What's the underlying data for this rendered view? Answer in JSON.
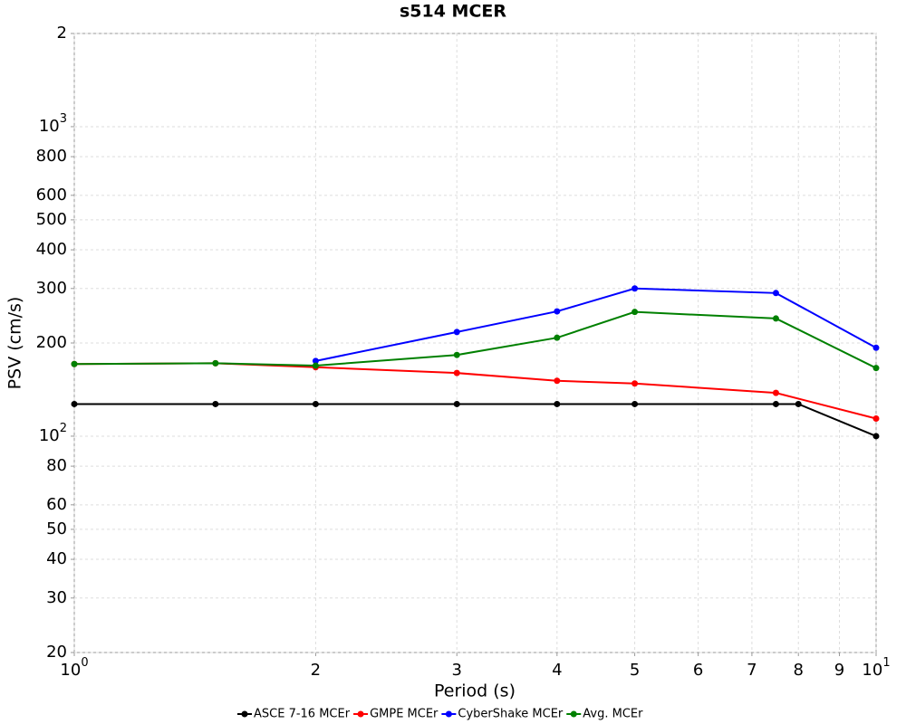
{
  "chart_data": {
    "type": "line",
    "title": "s514 MCER",
    "x_label": "Period (s)",
    "y_label": "PSV (cm/s)",
    "x_scale": "log",
    "y_scale": "log",
    "grid": true,
    "xlim": [
      1,
      10
    ],
    "ylim": [
      20,
      2000
    ],
    "xticks": [
      {
        "value": 1,
        "label": "10",
        "superscript": "0"
      },
      2,
      3,
      4,
      5,
      6,
      7,
      8,
      9,
      {
        "value": 10,
        "label": "10",
        "superscript": "1"
      }
    ],
    "yticks": [
      20,
      30,
      40,
      50,
      60,
      80,
      {
        "value": 100,
        "label": "10",
        "superscript": "2"
      },
      200,
      300,
      400,
      500,
      600,
      800,
      {
        "value": 1000,
        "label": "10",
        "superscript": "3"
      },
      {
        "value": 2000,
        "label": "2"
      }
    ],
    "legend_position": "bottom",
    "series": [
      {
        "name": "ASCE 7-16 MCEr",
        "color": "#000000",
        "x": [
          1,
          1.5,
          2,
          3,
          4,
          5,
          7.5,
          8,
          10
        ],
        "values": [
          127,
          127,
          127,
          127,
          127,
          127,
          127,
          127,
          100
        ]
      },
      {
        "name": "GMPE MCEr",
        "color": "#ff0000",
        "x": [
          1,
          1.5,
          2,
          3,
          4,
          5,
          7.5,
          10
        ],
        "values": [
          171,
          172,
          167,
          160,
          151,
          148,
          138,
          114
        ]
      },
      {
        "name": "CyberShake MCEr",
        "color": "#0000ff",
        "x": [
          2,
          3,
          4,
          5,
          7.5,
          10
        ],
        "values": [
          175,
          217,
          253,
          300,
          290,
          193
        ]
      },
      {
        "name": "Avg. MCEr",
        "color": "#008000",
        "x": [
          1,
          1.5,
          2,
          3,
          4,
          5,
          7.5,
          10
        ],
        "values": [
          171,
          172,
          169,
          183,
          208,
          252,
          240,
          166
        ]
      }
    ]
  }
}
